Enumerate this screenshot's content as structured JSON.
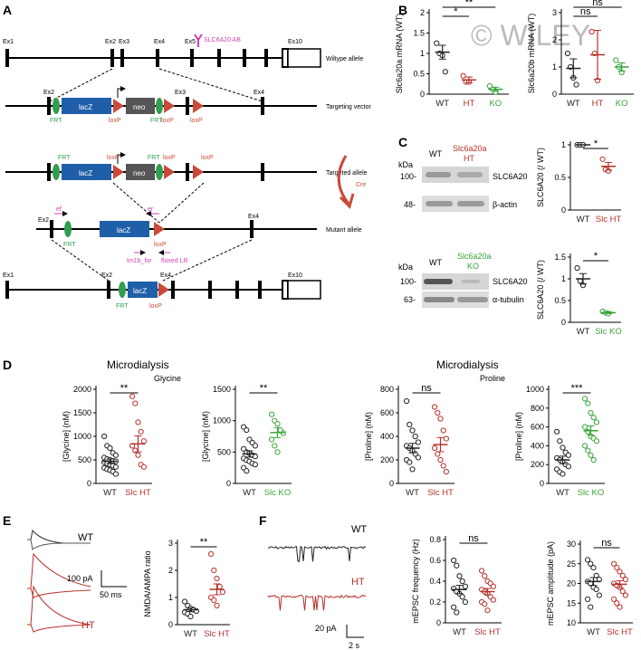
{
  "watermark": "© WILEY",
  "colors": {
    "wt": "#222222",
    "ht": "#b5312b",
    "ko": "#3aa33a",
    "lacz": "#1f5fa8",
    "neo": "#555555",
    "frt": "#2f9e4f",
    "loxp": "#c94a3a",
    "primer": "#d13fb0",
    "cre": "#c94a3a"
  },
  "panelA": {
    "label": "A",
    "wt": {
      "exons": [
        "Ex1",
        "Ex2",
        "Ex3",
        "Ex4",
        "Ex5",
        "Ex10"
      ],
      "ab": "SLC6A20 AB",
      "caption": "Wiltype allele"
    },
    "tv": {
      "ex2": "Ex2",
      "ex3": "Ex3",
      "ex4": "Ex4",
      "lacz": "lacZ",
      "neo": "neo",
      "frt1": "FRT",
      "frt2": "FRT",
      "lox1": "loxP",
      "lox2": "loxP",
      "lox3": "loxP",
      "caption": "Targeting vector"
    },
    "ta": {
      "frt1": "FRT",
      "frt2": "FRT",
      "lox1": "loxP",
      "lox2": "loxP",
      "lox3": "loxP",
      "lacz": "lacZ",
      "neo": "neo",
      "caption": "Targeted allele"
    },
    "cre": "Cre",
    "ma": {
      "ex2": "Ex2",
      "ex4": "Ex4",
      "ef": "ef",
      "er": "er",
      "frt": "FRT",
      "lacz": "lacZ",
      "lox": "loxP",
      "p1": "tm1b_for",
      "p2": "floxed LR",
      "caption": "Mutant allele"
    },
    "ko": {
      "ex1": "Ex1",
      "ex2": "Ex2",
      "ex4": "Ex4",
      "ex10": "Ex10",
      "frt": "FRT",
      "lacz": "lacZ",
      "lox": "loxP"
    }
  },
  "panelB": {
    "label": "B"
  },
  "panelC": {
    "label": "C",
    "kda": "kDa",
    "wt": "WT",
    "ht_label": "Slc6a20a HT",
    "ko_label": "Slc6a20a KO",
    "m100a": "100-",
    "m48": "48-",
    "m100b": "100-",
    "m63": "63-",
    "slc1": "SLC6A20",
    "actin": "β-actin",
    "slc2": "SLC6A20",
    "tubulin": "α-tubulin"
  },
  "panelD": {
    "label": "D",
    "title1": "Microdialysis",
    "sub1": "Glycine",
    "title2": "Microdialysis",
    "sub2": "Proline"
  },
  "panelE": {
    "label": "E",
    "wt": "WT",
    "ht": "HT",
    "scale_pa": "100 pA",
    "scale_ms": "50 ms"
  },
  "panelF": {
    "label": "F",
    "wt": "WT",
    "ht": "HT",
    "scale_pa": "20 pA",
    "scale_s": "2 s"
  },
  "chart_data": [
    {
      "id": "B1",
      "type": "scatter",
      "ylabel": "Slc6a20a mRNA (WT)",
      "ylim": [
        0,
        2
      ],
      "yticks": [
        0.0,
        0.5,
        1.0,
        1.5,
        2.0
      ],
      "categories": [
        "WT",
        "HT",
        "KO"
      ],
      "groups": [
        {
          "name": "WT",
          "points": [
            1.25,
            1.0,
            0.95,
            0.55
          ],
          "mean": 1.03,
          "sem": 0.17
        },
        {
          "name": "HT",
          "points": [
            0.45,
            0.3,
            0.3
          ],
          "mean": 0.35,
          "sem": 0.07
        },
        {
          "name": "KO",
          "points": [
            0.2,
            0.12,
            0.05
          ],
          "mean": 0.12,
          "sem": 0.05
        }
      ],
      "sig": [
        {
          "from": 0,
          "to": 1,
          "text": "*"
        },
        {
          "from": 0,
          "to": 2,
          "text": "**"
        }
      ]
    },
    {
      "id": "B2",
      "type": "scatter",
      "ylabel": "Slc6a20b mRNA (WT)",
      "ylim": [
        0,
        3
      ],
      "yticks": [
        0,
        1,
        2,
        3
      ],
      "categories": [
        "WT",
        "HT",
        "KO"
      ],
      "groups": [
        {
          "name": "WT",
          "points": [
            1.5,
            1.0,
            0.6,
            0.35
          ],
          "mean": 0.95,
          "sem": 0.35
        },
        {
          "name": "HT",
          "points": [
            2.3,
            1.5,
            0.5
          ],
          "mean": 1.45,
          "sem": 0.9
        },
        {
          "name": "KO",
          "points": [
            1.25,
            1.0,
            0.8
          ],
          "mean": 1.0,
          "sem": 0.15
        }
      ],
      "sig": [
        {
          "from": 0,
          "to": 1,
          "text": "ns"
        },
        {
          "from": 0,
          "to": 2,
          "text": "ns"
        }
      ]
    },
    {
      "id": "C1",
      "type": "scatter",
      "ylabel": "SLC6A20 (/ WT)",
      "ylim": [
        0,
        1.0
      ],
      "yticks": [
        0.0,
        0.5,
        1.0
      ],
      "categories": [
        "WT",
        "Slc HT"
      ],
      "groups": [
        {
          "name": "WT",
          "points": [
            1.0,
            1.0,
            1.0
          ],
          "mean": 1.0,
          "sem": 0.0
        },
        {
          "name": "Slc HT",
          "points": [
            0.78,
            0.62,
            0.6
          ],
          "mean": 0.67,
          "sem": 0.06
        }
      ],
      "sig": [
        {
          "from": 0,
          "to": 1,
          "text": "*"
        }
      ]
    },
    {
      "id": "C2",
      "type": "scatter",
      "ylabel": "SLC6A20 (/ WT)",
      "ylim": [
        0,
        1.5
      ],
      "yticks": [
        0.0,
        0.5,
        1.0,
        1.5
      ],
      "categories": [
        "WT",
        "Slc KO"
      ],
      "groups": [
        {
          "name": "WT",
          "points": [
            1.25,
            0.95,
            0.85
          ],
          "mean": 1.0,
          "sem": 0.12
        },
        {
          "name": "Slc KO",
          "points": [
            0.25,
            0.22,
            0.2
          ],
          "mean": 0.22,
          "sem": 0.02
        }
      ],
      "sig": [
        {
          "from": 0,
          "to": 1,
          "text": "*"
        }
      ]
    },
    {
      "id": "D1",
      "type": "scatter",
      "ylabel": "[Glycine] (nM)",
      "ylim": [
        0,
        2000
      ],
      "yticks": [
        0,
        500,
        1000,
        1500,
        2000
      ],
      "categories": [
        "WT",
        "Slc HT"
      ],
      "groups": [
        {
          "name": "WT",
          "points": [
            1000,
            800,
            750,
            650,
            600,
            550,
            520,
            500,
            480,
            470,
            450,
            420,
            400,
            380,
            350,
            330,
            300,
            280,
            250,
            200
          ],
          "mean": 470,
          "sem": 50
        },
        {
          "name": "Slc HT",
          "points": [
            1850,
            1700,
            1300,
            1100,
            900,
            800,
            700,
            600,
            400,
            350
          ],
          "mean": 840,
          "sem": 170
        }
      ],
      "sig": [
        {
          "from": 0,
          "to": 1,
          "text": "**"
        }
      ]
    },
    {
      "id": "D2",
      "type": "scatter",
      "ylabel": "[Glycine] (nM)",
      "ylim": [
        0,
        1500
      ],
      "yticks": [
        0,
        500,
        1000,
        1500
      ],
      "categories": [
        "WT",
        "Slc KO"
      ],
      "groups": [
        {
          "name": "WT",
          "points": [
            900,
            850,
            700,
            650,
            600,
            550,
            500,
            480,
            450,
            430,
            400,
            370,
            350,
            320,
            300,
            250,
            200
          ],
          "mean": 470,
          "sem": 50
        },
        {
          "name": "Slc KO",
          "points": [
            1100,
            1000,
            950,
            850,
            800,
            700,
            600,
            500
          ],
          "mean": 810,
          "sem": 80
        }
      ],
      "sig": [
        {
          "from": 0,
          "to": 1,
          "text": "**"
        }
      ]
    },
    {
      "id": "D3",
      "type": "scatter",
      "ylabel": "[Proline] (nM)",
      "ylim": [
        0,
        800
      ],
      "yticks": [
        0,
        200,
        400,
        600,
        800
      ],
      "categories": [
        "WT",
        "Slc HT"
      ],
      "groups": [
        {
          "name": "WT",
          "points": [
            700,
            500,
            450,
            400,
            350,
            320,
            300,
            280,
            250,
            220,
            200,
            180,
            120
          ],
          "mean": 300,
          "sem": 40
        },
        {
          "name": "Slc HT",
          "points": [
            650,
            600,
            550,
            450,
            380,
            300,
            250,
            200,
            150,
            100
          ],
          "mean": 330,
          "sem": 60
        }
      ],
      "sig": [
        {
          "from": 0,
          "to": 1,
          "text": "ns"
        }
      ]
    },
    {
      "id": "D4",
      "type": "scatter",
      "ylabel": "[Proline] (nM)",
      "ylim": [
        0,
        1000
      ],
      "yticks": [
        0,
        200,
        400,
        600,
        800,
        1000
      ],
      "categories": [
        "WT",
        "Slc KO"
      ],
      "groups": [
        {
          "name": "WT",
          "points": [
            550,
            450,
            380,
            330,
            300,
            270,
            250,
            230,
            200,
            180,
            150,
            120,
            100
          ],
          "mean": 250,
          "sem": 40
        },
        {
          "name": "Slc KO",
          "points": [
            900,
            850,
            750,
            700,
            650,
            600,
            550,
            500,
            480,
            450,
            400,
            350,
            300,
            250
          ],
          "mean": 560,
          "sem": 50
        }
      ],
      "sig": [
        {
          "from": 0,
          "to": 1,
          "text": "***"
        }
      ]
    },
    {
      "id": "E1",
      "type": "scatter",
      "ylabel": "NMDA/AMPA ratio",
      "ylim": [
        0,
        3
      ],
      "yticks": [
        0,
        1,
        2,
        3
      ],
      "categories": [
        "WT",
        "Slc HT"
      ],
      "groups": [
        {
          "name": "WT",
          "points": [
            0.85,
            0.7,
            0.6,
            0.55,
            0.5,
            0.45,
            0.4,
            0.3
          ],
          "mean": 0.55,
          "sem": 0.07
        },
        {
          "name": "Slc HT",
          "points": [
            2.6,
            2.0,
            1.7,
            1.4,
            1.2,
            1.0,
            0.9,
            0.7
          ],
          "mean": 1.3,
          "sem": 0.2
        }
      ],
      "sig": [
        {
          "from": 0,
          "to": 1,
          "text": "**"
        }
      ]
    },
    {
      "id": "F1",
      "type": "scatter",
      "ylabel": "mEPSC frequency (Hz)",
      "ylim": [
        0,
        0.8
      ],
      "yticks": [
        0.0,
        0.2,
        0.4,
        0.6,
        0.8
      ],
      "categories": [
        "WT",
        "Slc HT"
      ],
      "groups": [
        {
          "name": "WT",
          "points": [
            0.6,
            0.55,
            0.45,
            0.4,
            0.35,
            0.33,
            0.3,
            0.28,
            0.25,
            0.2,
            0.15,
            0.1
          ],
          "mean": 0.32,
          "sem": 0.04
        },
        {
          "name": "Slc HT",
          "points": [
            0.5,
            0.45,
            0.4,
            0.38,
            0.35,
            0.32,
            0.3,
            0.28,
            0.25,
            0.22,
            0.2,
            0.18,
            0.12
          ],
          "mean": 0.3,
          "sem": 0.03
        }
      ],
      "sig": [
        {
          "from": 0,
          "to": 1,
          "text": "ns"
        }
      ]
    },
    {
      "id": "F2",
      "type": "scatter",
      "ylabel": "mEPSC amplitude (pA)",
      "ylim": [
        10,
        30
      ],
      "yticks": [
        10,
        15,
        20,
        25,
        30
      ],
      "categories": [
        "WT",
        "Slc HT"
      ],
      "groups": [
        {
          "name": "WT",
          "points": [
            26,
            25,
            24,
            22,
            21,
            20.5,
            20,
            19,
            18.5,
            17,
            16,
            14
          ],
          "mean": 20.5,
          "sem": 1.0
        },
        {
          "name": "Slc HT",
          "points": [
            25,
            24,
            23,
            22,
            21,
            20,
            19.5,
            19,
            18,
            17,
            16,
            15,
            14
          ],
          "mean": 19.8,
          "sem": 0.9
        }
      ],
      "sig": [
        {
          "from": 0,
          "to": 1,
          "text": "ns"
        }
      ]
    }
  ]
}
